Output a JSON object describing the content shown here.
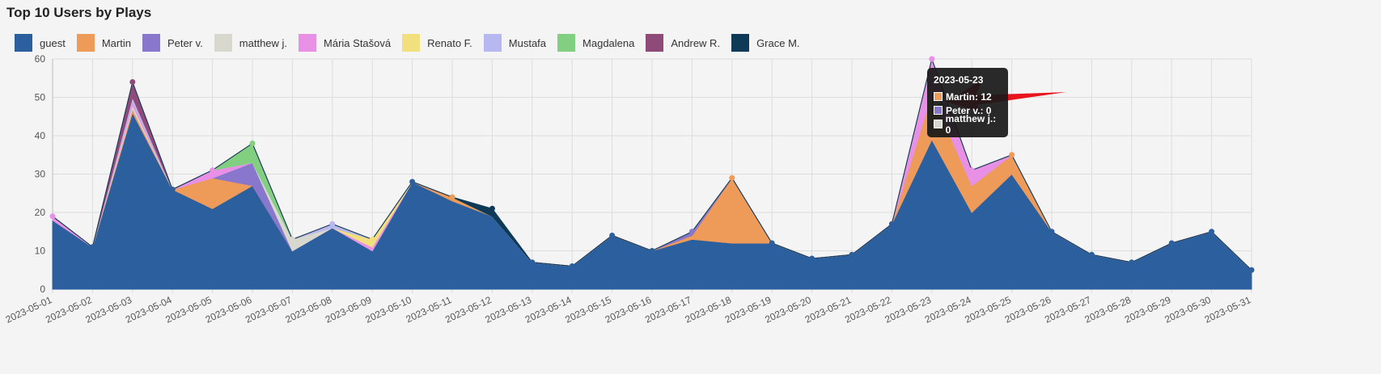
{
  "title": "Top 10 Users by Plays",
  "legend": [
    {
      "name": "guest",
      "color": "#2c5f9e"
    },
    {
      "name": "Martin",
      "color": "#ee9a58"
    },
    {
      "name": "Peter v.",
      "color": "#8877cc"
    },
    {
      "name": "matthew j.",
      "color": "#d8d8cf"
    },
    {
      "name": "Mária Stašová",
      "color": "#e88fe6"
    },
    {
      "name": "Renato F.",
      "color": "#f2e07e"
    },
    {
      "name": "Mustafa",
      "color": "#b8b8f0"
    },
    {
      "name": "Magdalena",
      "color": "#82cf82"
    },
    {
      "name": "Andrew R.",
      "color": "#8e4a78"
    },
    {
      "name": "Grace M.",
      "color": "#0e3a57"
    }
  ],
  "tooltip": {
    "title": "2023-05-23",
    "rows": [
      {
        "label": "Martin: 12",
        "color": "#ee9a58"
      },
      {
        "label": "Peter v.: 0",
        "color": "#8877cc"
      },
      {
        "label": "matthew j.: 0",
        "color": "#d8d8cf"
      }
    ]
  },
  "chart_data": {
    "type": "area",
    "stacked": true,
    "title": "Top 10 Users by Plays",
    "ylim": [
      0,
      60
    ],
    "yticks": [
      0,
      10,
      20,
      30,
      40,
      50,
      60
    ],
    "grid": true,
    "legend_position": "top-left",
    "categories": [
      "2023-05-01",
      "2023-05-02",
      "2023-05-03",
      "2023-05-04",
      "2023-05-05",
      "2023-05-06",
      "2023-05-07",
      "2023-05-08",
      "2023-05-09",
      "2023-05-10",
      "2023-05-11",
      "2023-05-12",
      "2023-05-13",
      "2023-05-14",
      "2023-05-15",
      "2023-05-16",
      "2023-05-17",
      "2023-05-18",
      "2023-05-19",
      "2023-05-20",
      "2023-05-21",
      "2023-05-22",
      "2023-05-23",
      "2023-05-24",
      "2023-05-25",
      "2023-05-26",
      "2023-05-27",
      "2023-05-28",
      "2023-05-29",
      "2023-05-30",
      "2023-05-31"
    ],
    "series": [
      {
        "name": "guest",
        "color": "#2c5f9e",
        "values": [
          18,
          11,
          46,
          26,
          21,
          27,
          10,
          16,
          10,
          28,
          23,
          19,
          7,
          6,
          14,
          10,
          13,
          12,
          12,
          8,
          9,
          17,
          39,
          20,
          30,
          15,
          9,
          7,
          12,
          15,
          5
        ]
      },
      {
        "name": "Martin",
        "color": "#ee9a58",
        "values": [
          0,
          0,
          1,
          0,
          8,
          0,
          0,
          0,
          0,
          0,
          1,
          0,
          0,
          0,
          0,
          0,
          1,
          17,
          0,
          0,
          0,
          0,
          12,
          7,
          5,
          0,
          0,
          0,
          0,
          0,
          0
        ]
      },
      {
        "name": "Peter v.",
        "color": "#8877cc",
        "values": [
          0,
          0,
          0,
          0,
          0,
          6,
          0,
          0,
          0,
          0,
          0,
          0,
          0,
          0,
          0,
          0,
          1,
          0,
          0,
          0,
          0,
          0,
          0,
          0,
          0,
          0,
          0,
          0,
          0,
          0,
          0
        ]
      },
      {
        "name": "matthew j.",
        "color": "#d8d8cf",
        "values": [
          0,
          0,
          1,
          0,
          0,
          0,
          3,
          0,
          0,
          0,
          0,
          0,
          0,
          0,
          0,
          0,
          0,
          0,
          0,
          0,
          0,
          0,
          0,
          0,
          0,
          0,
          0,
          0,
          0,
          0,
          0
        ]
      },
      {
        "name": "Mária Stašová",
        "color": "#e88fe6",
        "values": [
          1,
          0,
          1,
          0,
          2,
          0,
          0,
          0,
          1,
          0,
          0,
          0,
          0,
          0,
          0,
          0,
          0,
          0,
          0,
          0,
          0,
          0,
          9,
          4,
          0,
          0,
          0,
          0,
          0,
          0,
          0
        ]
      },
      {
        "name": "Renato F.",
        "color": "#f2e07e",
        "values": [
          0,
          0,
          0,
          0,
          0,
          0,
          0,
          0,
          2,
          0,
          0,
          0,
          0,
          0,
          0,
          0,
          0,
          0,
          0,
          0,
          0,
          0,
          0,
          0,
          0,
          0,
          0,
          0,
          0,
          0,
          0
        ]
      },
      {
        "name": "Mustafa",
        "color": "#b8b8f0",
        "values": [
          0,
          0,
          1,
          0,
          0,
          0,
          0,
          1,
          0,
          0,
          0,
          0,
          0,
          0,
          0,
          0,
          0,
          0,
          0,
          0,
          0,
          0,
          0,
          0,
          0,
          0,
          0,
          0,
          0,
          0,
          0
        ]
      },
      {
        "name": "Magdalena",
        "color": "#82cf82",
        "values": [
          0,
          0,
          0,
          0,
          0,
          5,
          0,
          0,
          0,
          0,
          0,
          0,
          0,
          0,
          0,
          0,
          0,
          0,
          0,
          0,
          0,
          0,
          0,
          0,
          0,
          0,
          0,
          0,
          0,
          0,
          0
        ]
      },
      {
        "name": "Andrew R.",
        "color": "#8e4a78",
        "values": [
          0,
          0,
          4,
          0,
          0,
          0,
          0,
          0,
          0,
          0,
          0,
          0,
          0,
          0,
          0,
          0,
          0,
          0,
          0,
          0,
          0,
          0,
          0,
          0,
          0,
          0,
          0,
          0,
          0,
          0,
          0
        ]
      },
      {
        "name": "Grace M.",
        "color": "#0e3a57",
        "values": [
          0,
          0,
          0,
          0,
          0,
          0,
          0,
          0,
          0,
          0,
          0,
          2,
          0,
          0,
          0,
          0,
          0,
          0,
          0,
          0,
          0,
          0,
          0,
          0,
          0,
          0,
          0,
          0,
          0,
          0,
          0
        ]
      }
    ]
  }
}
